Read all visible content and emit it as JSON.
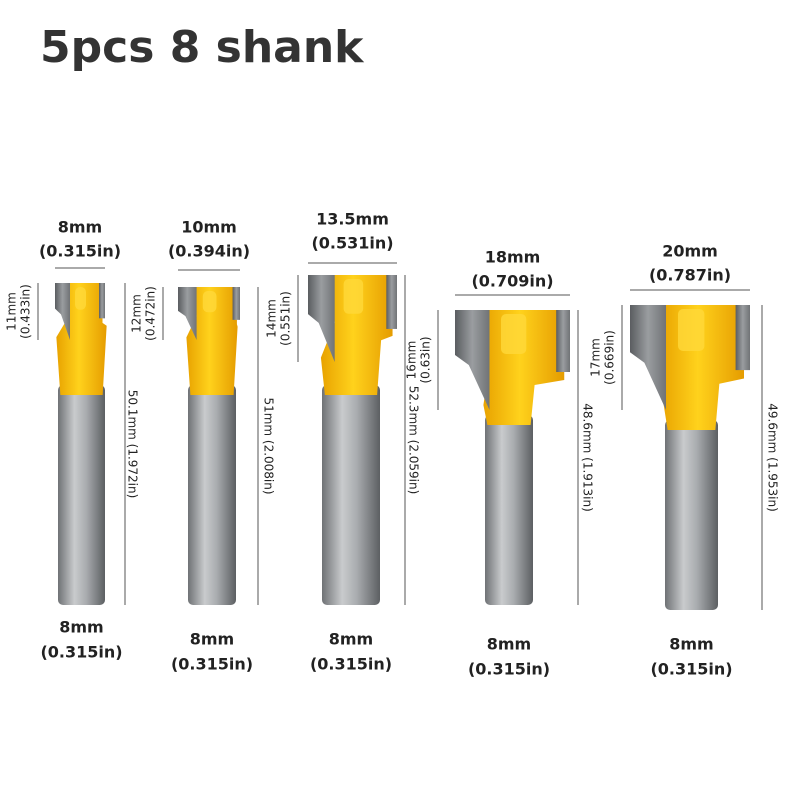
{
  "title": "5pcs 8 shank",
  "bits": [
    {
      "cutter_mm": "8mm",
      "cutter_in": "(0.315in)",
      "head_mm": "11mm",
      "head_in": "(0.433in)",
      "length": "50.1mm (1.972in)",
      "shank_mm": "8mm",
      "shank_in": "(0.315in)"
    },
    {
      "cutter_mm": "10mm",
      "cutter_in": "(0.394in)",
      "head_mm": "12mm",
      "head_in": "(0.472in)",
      "length": "51mm (2.008in)",
      "shank_mm": "8mm",
      "shank_in": "(0.315in)"
    },
    {
      "cutter_mm": "13.5mm",
      "cutter_in": "(0.531in)",
      "head_mm": "14mm",
      "head_in": "(0.551in)",
      "length": "52.3mm (2.059in)",
      "shank_mm": "8mm",
      "shank_in": "(0.315in)"
    },
    {
      "cutter_mm": "18mm",
      "cutter_in": "(0.709in)",
      "head_mm": "16mm",
      "head_in": "(0.63in)",
      "length": "48.6mm (1.913in)",
      "shank_mm": "8mm",
      "shank_in": "(0.315in)"
    },
    {
      "cutter_mm": "20mm",
      "cutter_in": "(0.787in)",
      "head_mm": "17mm",
      "head_in": "(0.669in)",
      "length": "49.6mm (1.953in)",
      "shank_mm": "8mm",
      "shank_in": "(0.315in)"
    }
  ]
}
